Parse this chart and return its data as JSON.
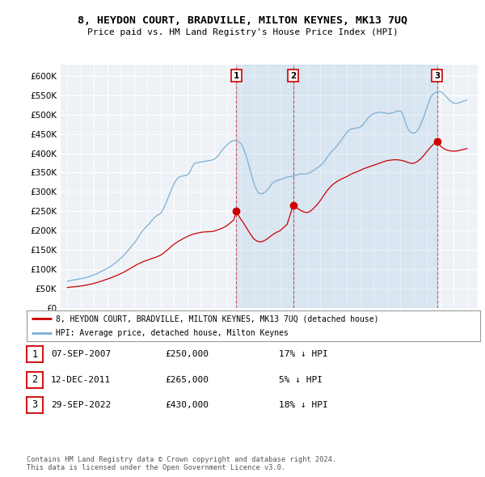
{
  "title": "8, HEYDON COURT, BRADVILLE, MILTON KEYNES, MK13 7UQ",
  "subtitle": "Price paid vs. HM Land Registry's House Price Index (HPI)",
  "ytick_values": [
    0,
    50000,
    100000,
    150000,
    200000,
    250000,
    300000,
    350000,
    400000,
    450000,
    500000,
    550000,
    600000
  ],
  "ylim": [
    0,
    630000
  ],
  "legend_house": "8, HEYDON COURT, BRADVILLE, MILTON KEYNES, MK13 7UQ (detached house)",
  "legend_hpi": "HPI: Average price, detached house, Milton Keynes",
  "sales": [
    {
      "label": "1",
      "date": "07-SEP-2007",
      "price": 250000,
      "hpi_diff": "17% ↓ HPI"
    },
    {
      "label": "2",
      "date": "12-DEC-2011",
      "price": 265000,
      "hpi_diff": "5% ↓ HPI"
    },
    {
      "label": "3",
      "date": "29-SEP-2022",
      "price": 430000,
      "hpi_diff": "18% ↓ HPI"
    }
  ],
  "sale_years": [
    2007.69,
    2011.95,
    2022.75
  ],
  "sale_prices": [
    250000,
    265000,
    430000
  ],
  "footnote1": "Contains HM Land Registry data © Crown copyright and database right 2024.",
  "footnote2": "This data is licensed under the Open Government Licence v3.0.",
  "house_color": "#cc0000",
  "hpi_color": "#7bafd4",
  "shade_color": "#ddeeff",
  "background_color": "#ffffff",
  "plot_bg_color": "#eef2f7",
  "grid_color": "#ffffff",
  "hpi_data_x": [
    1995.0,
    1995.08,
    1995.17,
    1995.25,
    1995.33,
    1995.42,
    1995.5,
    1995.58,
    1995.67,
    1995.75,
    1995.83,
    1995.92,
    1996.0,
    1996.08,
    1996.17,
    1996.25,
    1996.33,
    1996.42,
    1996.5,
    1996.58,
    1996.67,
    1996.75,
    1996.83,
    1996.92,
    1997.0,
    1997.08,
    1997.17,
    1997.25,
    1997.33,
    1997.42,
    1997.5,
    1997.58,
    1997.67,
    1997.75,
    1997.83,
    1997.92,
    1998.0,
    1998.08,
    1998.17,
    1998.25,
    1998.33,
    1998.42,
    1998.5,
    1998.58,
    1998.67,
    1998.75,
    1998.83,
    1998.92,
    1999.0,
    1999.08,
    1999.17,
    1999.25,
    1999.33,
    1999.42,
    1999.5,
    1999.58,
    1999.67,
    1999.75,
    1999.83,
    1999.92,
    2000.0,
    2000.08,
    2000.17,
    2000.25,
    2000.33,
    2000.42,
    2000.5,
    2000.58,
    2000.67,
    2000.75,
    2000.83,
    2000.92,
    2001.0,
    2001.08,
    2001.17,
    2001.25,
    2001.33,
    2001.42,
    2001.5,
    2001.58,
    2001.67,
    2001.75,
    2001.83,
    2001.92,
    2002.0,
    2002.08,
    2002.17,
    2002.25,
    2002.33,
    2002.42,
    2002.5,
    2002.58,
    2002.67,
    2002.75,
    2002.83,
    2002.92,
    2003.0,
    2003.08,
    2003.17,
    2003.25,
    2003.33,
    2003.42,
    2003.5,
    2003.58,
    2003.67,
    2003.75,
    2003.83,
    2003.92,
    2004.0,
    2004.08,
    2004.17,
    2004.25,
    2004.33,
    2004.42,
    2004.5,
    2004.58,
    2004.67,
    2004.75,
    2004.83,
    2004.92,
    2005.0,
    2005.08,
    2005.17,
    2005.25,
    2005.33,
    2005.42,
    2005.5,
    2005.58,
    2005.67,
    2005.75,
    2005.83,
    2005.92,
    2006.0,
    2006.08,
    2006.17,
    2006.25,
    2006.33,
    2006.42,
    2006.5,
    2006.58,
    2006.67,
    2006.75,
    2006.83,
    2006.92,
    2007.0,
    2007.08,
    2007.17,
    2007.25,
    2007.33,
    2007.42,
    2007.5,
    2007.58,
    2007.67,
    2007.75,
    2007.83,
    2007.92,
    2008.0,
    2008.08,
    2008.17,
    2008.25,
    2008.33,
    2008.42,
    2008.5,
    2008.58,
    2008.67,
    2008.75,
    2008.83,
    2008.92,
    2009.0,
    2009.08,
    2009.17,
    2009.25,
    2009.33,
    2009.42,
    2009.5,
    2009.58,
    2009.67,
    2009.75,
    2009.83,
    2009.92,
    2010.0,
    2010.08,
    2010.17,
    2010.25,
    2010.33,
    2010.42,
    2010.5,
    2010.58,
    2010.67,
    2010.75,
    2010.83,
    2010.92,
    2011.0,
    2011.08,
    2011.17,
    2011.25,
    2011.33,
    2011.42,
    2011.5,
    2011.58,
    2011.67,
    2011.75,
    2011.83,
    2011.92,
    2012.0,
    2012.08,
    2012.17,
    2012.25,
    2012.33,
    2012.42,
    2012.5,
    2012.58,
    2012.67,
    2012.75,
    2012.83,
    2012.92,
    2013.0,
    2013.08,
    2013.17,
    2013.25,
    2013.33,
    2013.42,
    2013.5,
    2013.58,
    2013.67,
    2013.75,
    2013.83,
    2013.92,
    2014.0,
    2014.08,
    2014.17,
    2014.25,
    2014.33,
    2014.42,
    2014.5,
    2014.58,
    2014.67,
    2014.75,
    2014.83,
    2014.92,
    2015.0,
    2015.08,
    2015.17,
    2015.25,
    2015.33,
    2015.42,
    2015.5,
    2015.58,
    2015.67,
    2015.75,
    2015.83,
    2015.92,
    2016.0,
    2016.08,
    2016.17,
    2016.25,
    2016.33,
    2016.42,
    2016.5,
    2016.58,
    2016.67,
    2016.75,
    2016.83,
    2016.92,
    2017.0,
    2017.08,
    2017.17,
    2017.25,
    2017.33,
    2017.42,
    2017.5,
    2017.58,
    2017.67,
    2017.75,
    2017.83,
    2017.92,
    2018.0,
    2018.08,
    2018.17,
    2018.25,
    2018.33,
    2018.42,
    2018.5,
    2018.58,
    2018.67,
    2018.75,
    2018.83,
    2018.92,
    2019.0,
    2019.08,
    2019.17,
    2019.25,
    2019.33,
    2019.42,
    2019.5,
    2019.58,
    2019.67,
    2019.75,
    2019.83,
    2019.92,
    2020.0,
    2020.08,
    2020.17,
    2020.25,
    2020.33,
    2020.42,
    2020.5,
    2020.58,
    2020.67,
    2020.75,
    2020.83,
    2020.92,
    2021.0,
    2021.08,
    2021.17,
    2021.25,
    2021.33,
    2021.42,
    2021.5,
    2021.58,
    2021.67,
    2021.75,
    2021.83,
    2021.92,
    2022.0,
    2022.08,
    2022.17,
    2022.25,
    2022.33,
    2022.42,
    2022.5,
    2022.58,
    2022.67,
    2022.75,
    2022.83,
    2022.92,
    2023.0,
    2023.08,
    2023.17,
    2023.25,
    2023.33,
    2023.42,
    2023.5,
    2023.58,
    2023.67,
    2023.75,
    2023.83,
    2023.92,
    2024.0,
    2024.08,
    2024.17,
    2024.25,
    2024.33,
    2024.42,
    2024.5,
    2024.58,
    2024.67,
    2024.75,
    2024.83,
    2024.92,
    2025.0
  ],
  "hpi_data_y": [
    68000,
    69000,
    70000,
    70500,
    71000,
    71500,
    72000,
    72500,
    73000,
    73500,
    74000,
    74500,
    75000,
    75500,
    76000,
    76800,
    77500,
    78200,
    79000,
    80000,
    81000,
    82000,
    83000,
    84000,
    85000,
    86000,
    87000,
    88500,
    90000,
    91500,
    93000,
    94500,
    96000,
    97500,
    99000,
    100500,
    102000,
    103500,
    105000,
    107000,
    109000,
    111000,
    113000,
    115000,
    117500,
    120000,
    122500,
    125000,
    127500,
    130000,
    133000,
    136000,
    139000,
    142000,
    145500,
    149000,
    152500,
    156000,
    159500,
    163000,
    166000,
    170000,
    174000,
    178500,
    183000,
    187500,
    192000,
    196000,
    200000,
    203000,
    206000,
    209000,
    212000,
    215000,
    218000,
    221500,
    225000,
    228500,
    232000,
    235000,
    237000,
    239000,
    240500,
    242000,
    244000,
    248000,
    253000,
    259000,
    265000,
    272000,
    279000,
    286000,
    293000,
    300000,
    307000,
    314000,
    320000,
    325000,
    330000,
    334000,
    337000,
    339000,
    340000,
    340500,
    341000,
    341500,
    342000,
    342500,
    343000,
    346000,
    350000,
    355000,
    361000,
    367000,
    372000,
    374000,
    375000,
    375500,
    376000,
    376500,
    377000,
    377500,
    378000,
    378500,
    379000,
    379500,
    380000,
    380500,
    381000,
    381500,
    382000,
    383000,
    384000,
    386000,
    388000,
    391000,
    394000,
    398000,
    402000,
    406000,
    410000,
    413000,
    416000,
    419000,
    422000,
    425000,
    427000,
    429000,
    431000,
    432000,
    433000,
    432500,
    432000,
    431000,
    430000,
    428000,
    426000,
    422000,
    417000,
    410000,
    402000,
    393000,
    384000,
    374000,
    363000,
    352000,
    342000,
    332000,
    323000,
    315000,
    308000,
    302000,
    298000,
    296000,
    295000,
    295500,
    296000,
    297500,
    299000,
    301000,
    304000,
    308000,
    312000,
    316000,
    320000,
    323000,
    325000,
    327000,
    328000,
    329000,
    330000,
    331000,
    332000,
    333000,
    334000,
    335000,
    336000,
    337000,
    338000,
    338500,
    339000,
    339500,
    340000,
    340500,
    341000,
    342000,
    343000,
    344000,
    345000,
    345500,
    346000,
    346000,
    346000,
    346000,
    346000,
    346500,
    347000,
    348000,
    349000,
    350500,
    352000,
    354000,
    356000,
    358000,
    360000,
    362000,
    364000,
    366000,
    368500,
    371000,
    374000,
    377500,
    381000,
    385000,
    389000,
    393000,
    397000,
    400500,
    404000,
    407000,
    410000,
    413000,
    416000,
    419500,
    423000,
    427000,
    431000,
    435000,
    439000,
    443000,
    447000,
    451000,
    455000,
    458000,
    460500,
    462000,
    463000,
    463500,
    464000,
    464500,
    465000,
    465500,
    466000,
    467000,
    468000,
    470000,
    473000,
    476500,
    480000,
    484000,
    488000,
    491500,
    495000,
    497500,
    500000,
    501500,
    503000,
    504000,
    504500,
    505000,
    505500,
    506000,
    506000,
    506000,
    505500,
    505000,
    504500,
    504000,
    503500,
    503000,
    503000,
    503500,
    504000,
    505000,
    506000,
    507000,
    508000,
    508500,
    509000,
    509000,
    509000,
    506000,
    501000,
    494000,
    485000,
    476000,
    468000,
    462000,
    458000,
    455000,
    453000,
    452000,
    452000,
    453000,
    455000,
    458000,
    462000,
    467000,
    473000,
    480000,
    487000,
    494000,
    502000,
    510000,
    519000,
    528000,
    536000,
    543000,
    548000,
    552000,
    555000,
    557000,
    558000,
    559000,
    559500,
    560000,
    559500,
    558000,
    556000,
    553000,
    550000,
    547000,
    544000,
    541000,
    538000,
    535000,
    533000,
    531000,
    530000,
    529000,
    529000,
    529500,
    530000,
    531000,
    532000,
    533000,
    534000,
    535000,
    536000,
    537000,
    538000
  ],
  "house_data_x": [
    1995.0,
    1995.17,
    1995.5,
    1995.75,
    1996.0,
    1996.25,
    1996.5,
    1996.75,
    1997.0,
    1997.25,
    1997.5,
    1997.75,
    1998.0,
    1998.25,
    1998.5,
    1998.75,
    1999.0,
    1999.25,
    1999.5,
    1999.75,
    2000.0,
    2000.25,
    2000.5,
    2000.75,
    2001.0,
    2001.25,
    2001.5,
    2001.75,
    2002.0,
    2002.25,
    2002.5,
    2002.75,
    2003.0,
    2003.25,
    2003.5,
    2003.75,
    2004.0,
    2004.25,
    2004.5,
    2004.75,
    2005.0,
    2005.25,
    2005.5,
    2005.75,
    2006.0,
    2006.25,
    2006.5,
    2006.75,
    2007.0,
    2007.25,
    2007.5,
    2007.69,
    2007.83,
    2008.0,
    2008.25,
    2008.5,
    2008.75,
    2009.0,
    2009.25,
    2009.5,
    2009.75,
    2010.0,
    2010.25,
    2010.5,
    2010.75,
    2011.0,
    2011.25,
    2011.5,
    2011.95,
    2012.0,
    2012.25,
    2012.5,
    2012.75,
    2013.0,
    2013.25,
    2013.5,
    2013.75,
    2014.0,
    2014.25,
    2014.5,
    2014.75,
    2015.0,
    2015.25,
    2015.5,
    2015.75,
    2016.0,
    2016.25,
    2016.5,
    2016.75,
    2017.0,
    2017.25,
    2017.5,
    2017.75,
    2018.0,
    2018.25,
    2018.5,
    2018.75,
    2019.0,
    2019.25,
    2019.5,
    2019.75,
    2020.0,
    2020.25,
    2020.5,
    2020.75,
    2021.0,
    2021.25,
    2021.5,
    2021.75,
    2022.0,
    2022.25,
    2022.5,
    2022.75,
    2022.92,
    2023.0,
    2023.25,
    2023.5,
    2023.75,
    2024.0,
    2024.25,
    2024.5,
    2024.75,
    2025.0
  ],
  "house_data_y": [
    52000,
    53000,
    54000,
    55000,
    56000,
    57500,
    59000,
    61000,
    63000,
    65500,
    68000,
    71000,
    74000,
    77000,
    80500,
    84000,
    88000,
    92000,
    97000,
    102000,
    107000,
    112000,
    116000,
    120000,
    123000,
    126000,
    129000,
    132000,
    136000,
    142000,
    149000,
    157000,
    164000,
    170000,
    175000,
    180000,
    184000,
    188000,
    191000,
    193000,
    195000,
    196000,
    196500,
    197000,
    198000,
    201000,
    204000,
    208000,
    213000,
    220000,
    228000,
    250000,
    240000,
    230000,
    218000,
    204000,
    190000,
    178000,
    172000,
    170000,
    173000,
    178000,
    185000,
    191000,
    196000,
    200000,
    208000,
    216000,
    265000,
    262000,
    258000,
    252000,
    248000,
    246000,
    250000,
    258000,
    267000,
    278000,
    291000,
    303000,
    313000,
    321000,
    327000,
    332000,
    336000,
    340000,
    345000,
    349000,
    352000,
    356000,
    360000,
    363000,
    366000,
    369000,
    372000,
    375000,
    378000,
    381000,
    382000,
    383000,
    383000,
    382000,
    380000,
    377000,
    374000,
    374000,
    378000,
    385000,
    394000,
    405000,
    415000,
    424000,
    430000,
    425000,
    418000,
    412000,
    408000,
    406000,
    405000,
    406000,
    408000,
    410000,
    412000
  ]
}
